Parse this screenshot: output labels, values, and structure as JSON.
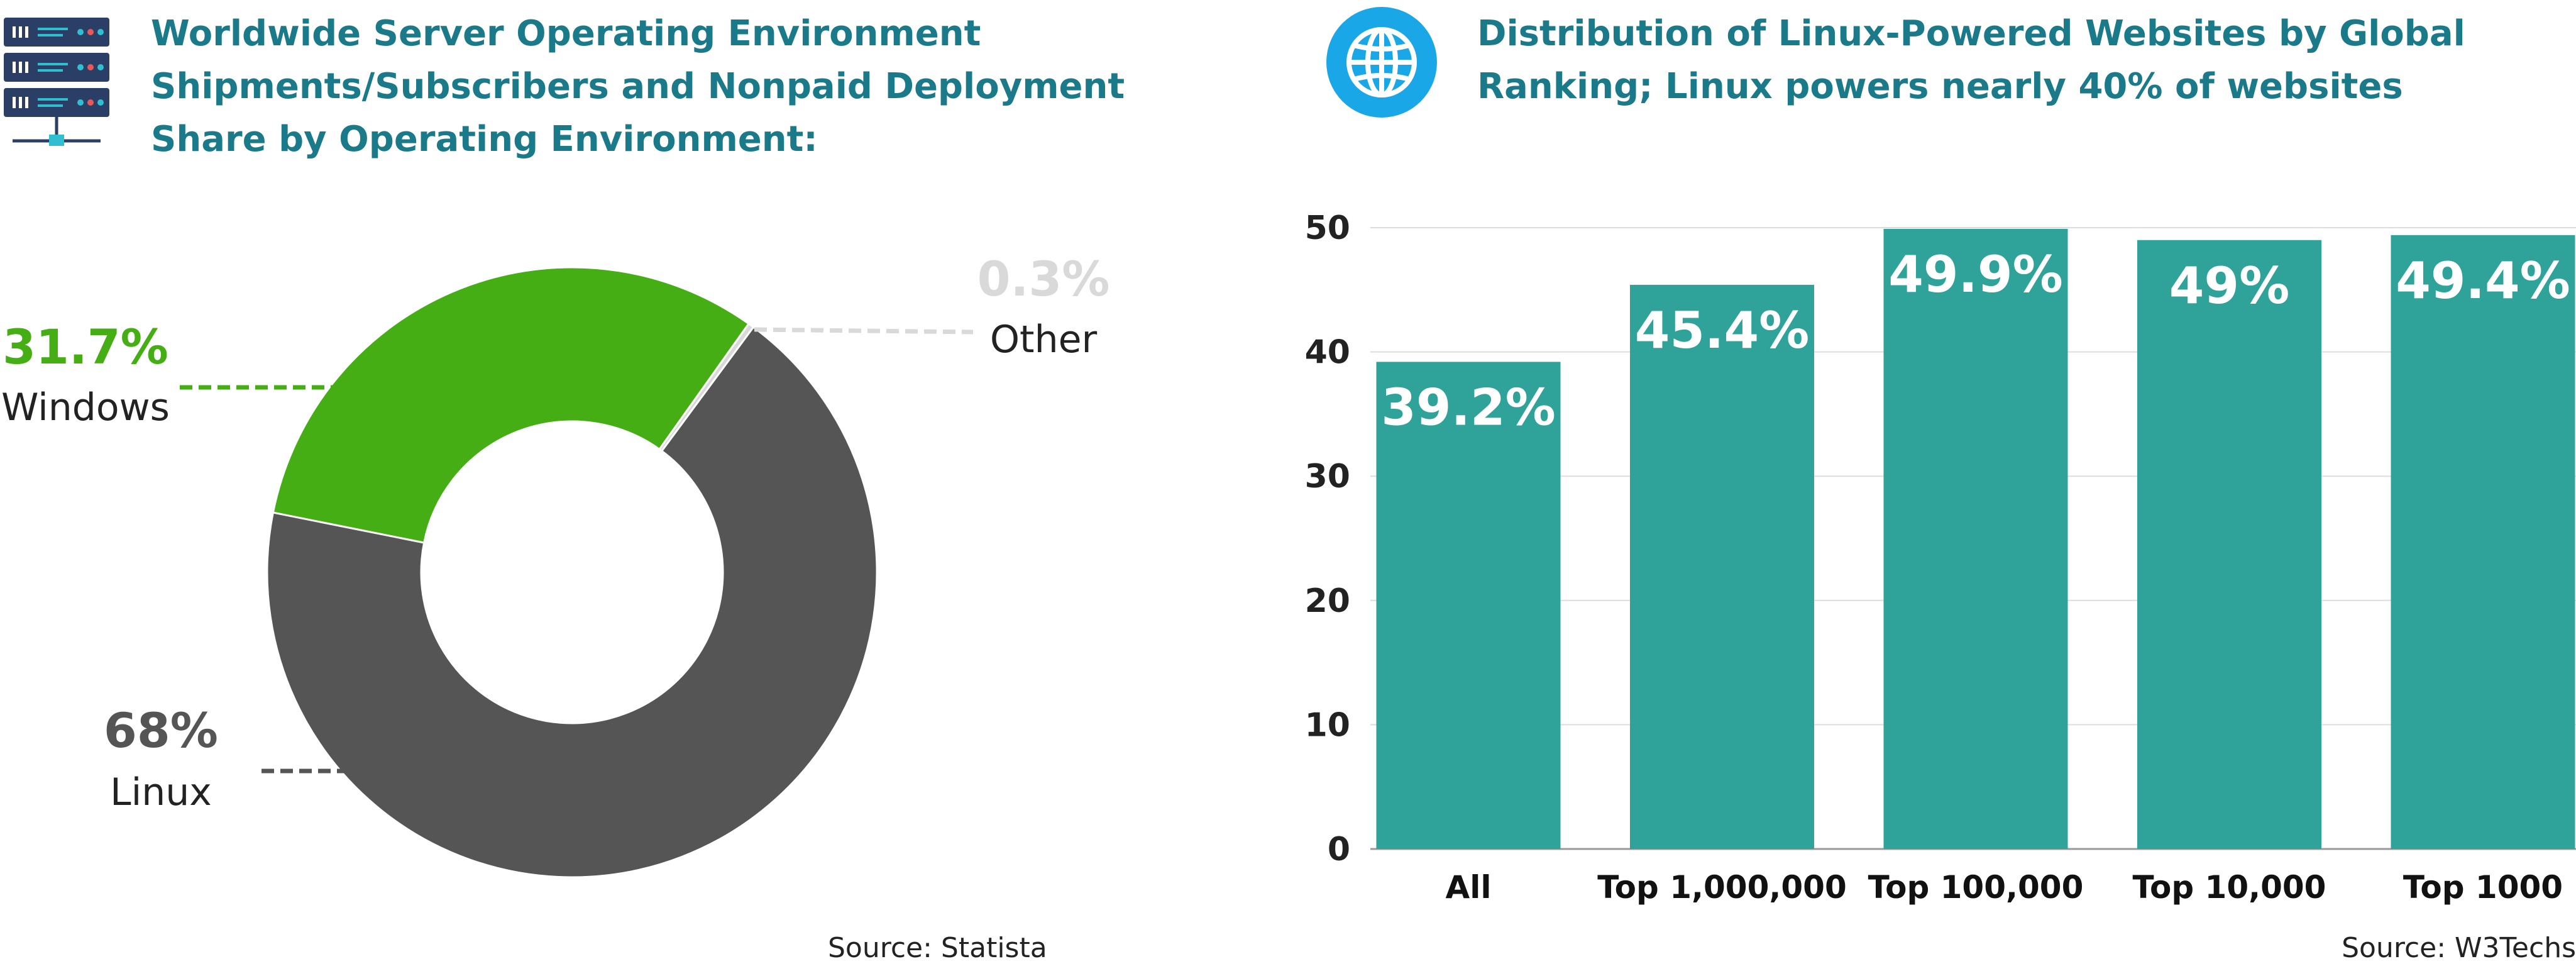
{
  "left_panel": {
    "icon": "server-rack-icon",
    "title_lines": [
      "Worldwide Server Operating Environment",
      "Shipments/Subscribers and Nonpaid Deployment",
      "Share by Operating Environment:"
    ],
    "source": "Source: Statista"
  },
  "right_panel": {
    "icon": "globe-icon",
    "title_lines": [
      "Distribution of Linux-Powered Websites by Global",
      "Ranking;  Linux powers nearly 40% of websites"
    ],
    "source": "Source: W3Techs"
  },
  "colors": {
    "title": "#1a7a8a",
    "linux": "#555555",
    "windows": "#44ae14",
    "other": "#d9d9d9",
    "bar": "#2fa39a",
    "globe": "#1aa7e8"
  },
  "chart_data": [
    {
      "type": "pie",
      "donut": true,
      "slices": [
        {
          "label": "Linux",
          "value": 68,
          "value_label": "68%",
          "color": "#555555"
        },
        {
          "label": "Windows",
          "value": 31.7,
          "value_label": "31.7%",
          "color": "#44ae14"
        },
        {
          "label": "Other",
          "value": 0.3,
          "value_label": "0.3%",
          "color": "#d9d9d9"
        }
      ]
    },
    {
      "type": "bar",
      "categories": [
        "All",
        "Top 1,000,000",
        "Top 100,000",
        "Top 10,000",
        "Top 1000"
      ],
      "values": [
        39.2,
        45.4,
        49.9,
        49,
        49.4
      ],
      "data_labels": [
        "39.2%",
        "45.4%",
        "49.9%",
        "49%",
        "49.4%"
      ],
      "ylim": [
        0,
        50
      ],
      "yticks": [
        0,
        10,
        20,
        30,
        40,
        50
      ],
      "grid": true,
      "color": "#2fa39a"
    }
  ]
}
